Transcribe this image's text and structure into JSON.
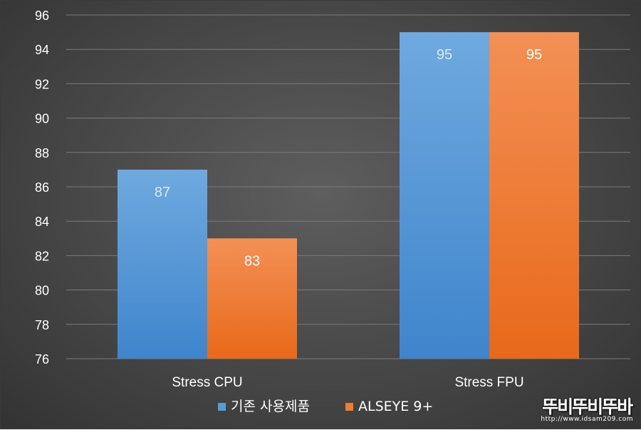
{
  "chart_data": {
    "type": "bar",
    "categories": [
      "Stress CPU",
      "Stress FPU"
    ],
    "series": [
      {
        "name": "기존 사용제품",
        "values": [
          87,
          95
        ],
        "color": "#5b9bd5",
        "label_color": "#dce8f5"
      },
      {
        "name": "ALSEYE 9+",
        "values": [
          83,
          95
        ],
        "color": "#ed7d31",
        "label_color": "#ffffff"
      }
    ],
    "ylim": [
      76,
      96
    ],
    "yticks": [
      76,
      78,
      80,
      82,
      84,
      86,
      88,
      90,
      92,
      94,
      96
    ],
    "title": "",
    "xlabel": "",
    "ylabel": "",
    "grid": true,
    "legend_position": "bottom-center",
    "data_labels": true
  },
  "watermark": {
    "text": "뚜비뚜비뚜바",
    "url": "http://www.idsam209.com"
  }
}
